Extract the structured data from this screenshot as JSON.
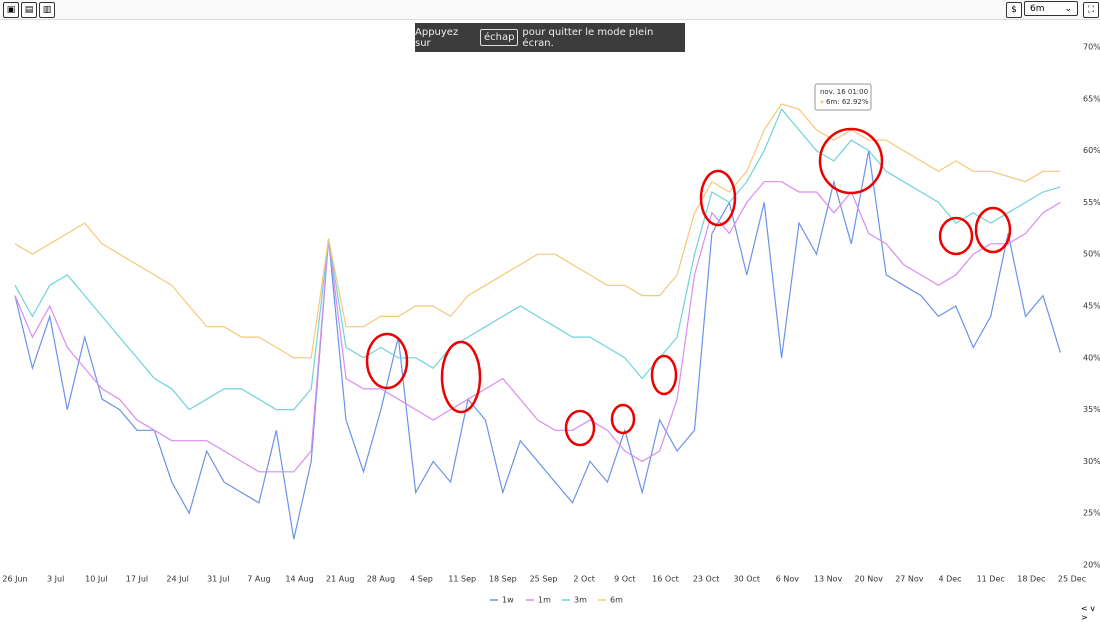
{
  "toolbar": {
    "currency": "$",
    "range": "6m"
  },
  "toast": {
    "before": "Appuyez sur",
    "key": "échap",
    "after": "pour quitter le mode plein écran."
  },
  "tooltip": {
    "date": "nov. 16 01:00",
    "text": "6m: 62.92%"
  },
  "nav": "< v >",
  "chart_data": {
    "type": "line",
    "x": [
      0,
      3,
      6,
      9,
      12,
      15,
      18,
      21,
      24,
      27,
      30,
      33,
      36,
      39,
      42,
      45,
      48,
      51,
      54,
      57,
      60,
      63,
      66,
      69,
      72,
      75,
      78,
      81,
      84,
      87,
      90,
      93,
      96,
      99,
      102,
      105,
      108,
      111,
      114,
      117,
      120,
      123,
      126,
      129,
      132,
      135,
      138,
      141,
      144,
      147,
      150,
      153,
      156,
      159,
      162,
      165,
      168,
      171,
      174,
      177,
      180
    ],
    "series": [
      {
        "name": "1w",
        "color": "#6a93e8",
        "values": [
          46,
          39,
          44,
          35,
          42,
          36,
          35,
          33,
          33,
          28,
          25,
          31,
          28,
          27,
          26,
          33,
          22.5,
          30,
          51.5,
          34,
          29,
          35,
          42,
          27,
          30,
          28,
          36,
          34,
          27,
          32,
          30,
          28,
          26,
          30,
          28,
          33,
          27,
          34,
          31,
          33,
          52,
          55,
          48,
          55,
          40,
          53,
          50,
          57,
          51,
          60,
          48,
          47,
          46,
          44,
          45,
          41,
          44,
          52,
          44,
          46,
          40.5
        ]
      },
      {
        "name": "1m",
        "color": "#d98cf0",
        "values": [
          46,
          42,
          45,
          41,
          39,
          37,
          36,
          34,
          33,
          32,
          32,
          32,
          31,
          30,
          29,
          29,
          29,
          31,
          51.5,
          38,
          37,
          37,
          36,
          35,
          34,
          35,
          36,
          37,
          38,
          36,
          34,
          33,
          33,
          34,
          33,
          31,
          30,
          31,
          36,
          48,
          54,
          52,
          55,
          57,
          57,
          56,
          56,
          54,
          56,
          52,
          51,
          49,
          48,
          47,
          48,
          50,
          51,
          51,
          52,
          54,
          55
        ]
      },
      {
        "name": "3m",
        "color": "#6fd3d8",
        "values": [
          47,
          44,
          47,
          48,
          46,
          44,
          42,
          40,
          38,
          37,
          35,
          36,
          37,
          37,
          36,
          35,
          35,
          37,
          51.5,
          41,
          40,
          41,
          40,
          40,
          39,
          41,
          42,
          43,
          44,
          45,
          44,
          43,
          42,
          42,
          41,
          40,
          38,
          40,
          42,
          50,
          56,
          55,
          57,
          60,
          64,
          62,
          60,
          59,
          61,
          60,
          58,
          57,
          56,
          55,
          53,
          54,
          53,
          54,
          55,
          56,
          56.5
        ]
      },
      {
        "name": "6m",
        "color": "#f5c879",
        "values": [
          51,
          50,
          51,
          52,
          53,
          51,
          50,
          49,
          48,
          47,
          45,
          43,
          43,
          42,
          42,
          41,
          40,
          40,
          51.5,
          43,
          43,
          44,
          44,
          45,
          45,
          44,
          46,
          47,
          48,
          49,
          50,
          50,
          49,
          48,
          47,
          47,
          46,
          46,
          48,
          54,
          57,
          56,
          58,
          62,
          64.5,
          64,
          62,
          61,
          62,
          61,
          61,
          60,
          59,
          58,
          59,
          58,
          58,
          57.5,
          57,
          58,
          58
        ]
      }
    ],
    "xlim": [
      0,
      182
    ],
    "xticks": [
      {
        "value": 0,
        "label": "26 Jun"
      },
      {
        "value": 7,
        "label": "3 Jul"
      },
      {
        "value": 14,
        "label": "10 Jul"
      },
      {
        "value": 21,
        "label": "17 Jul"
      },
      {
        "value": 28,
        "label": "24 Jul"
      },
      {
        "value": 35,
        "label": "31 Jul"
      },
      {
        "value": 42,
        "label": "7 Aug"
      },
      {
        "value": 49,
        "label": "14 Aug"
      },
      {
        "value": 56,
        "label": "21 Aug"
      },
      {
        "value": 63,
        "label": "28 Aug"
      },
      {
        "value": 70,
        "label": "4 Sep"
      },
      {
        "value": 77,
        "label": "11 Sep"
      },
      {
        "value": 84,
        "label": "18 Sep"
      },
      {
        "value": 91,
        "label": "25 Sep"
      },
      {
        "value": 98,
        "label": "2 Oct"
      },
      {
        "value": 105,
        "label": "9 Oct"
      },
      {
        "value": 112,
        "label": "16 Oct"
      },
      {
        "value": 119,
        "label": "23 Oct"
      },
      {
        "value": 126,
        "label": "30 Oct"
      },
      {
        "value": 133,
        "label": "6 Nov"
      },
      {
        "value": 140,
        "label": "13 Nov"
      },
      {
        "value": 147,
        "label": "20 Nov"
      },
      {
        "value": 154,
        "label": "27 Nov"
      },
      {
        "value": 161,
        "label": "4 Dec"
      },
      {
        "value": 168,
        "label": "11 Dec"
      },
      {
        "value": 175,
        "label": "18 Dec"
      },
      {
        "value": 182,
        "label": "25 Dec"
      }
    ],
    "ylim": [
      20,
      70
    ],
    "yticks": [
      {
        "value": 20,
        "label": "20%"
      },
      {
        "value": 25,
        "label": "25%"
      },
      {
        "value": 30,
        "label": "30%"
      },
      {
        "value": 35,
        "label": "35%"
      },
      {
        "value": 40,
        "label": "40%"
      },
      {
        "value": 45,
        "label": "45%"
      },
      {
        "value": 50,
        "label": "50%"
      },
      {
        "value": 55,
        "label": "55%"
      },
      {
        "value": 60,
        "label": "60%"
      },
      {
        "value": 65,
        "label": "65%"
      },
      {
        "value": 70,
        "label": "70%"
      }
    ]
  }
}
